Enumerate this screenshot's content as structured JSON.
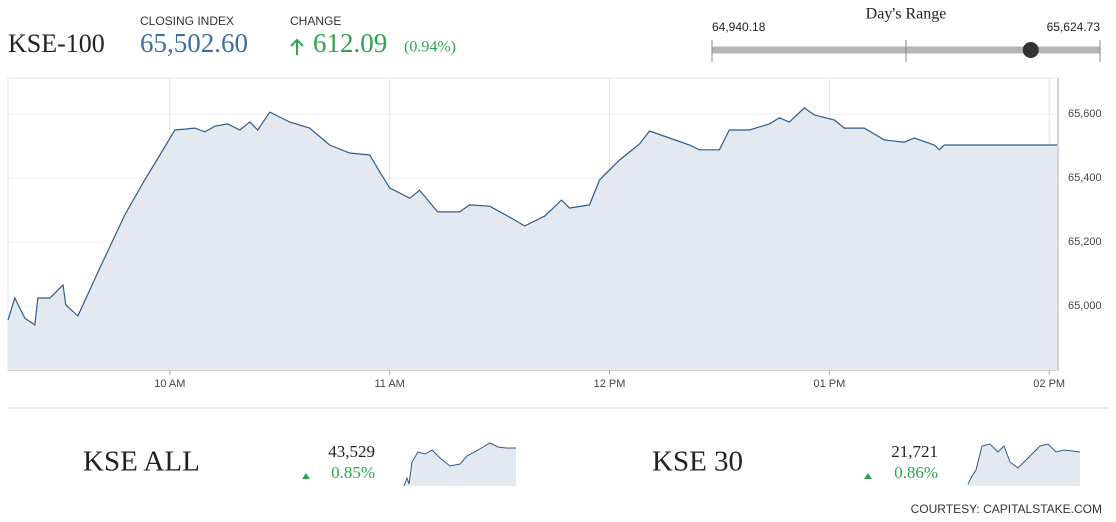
{
  "header": {
    "name": "KSE-100",
    "closing_label": "CLOSING INDEX",
    "closing": {
      "value": 65502.6,
      "label": "65,502.60"
    },
    "change_label": "CHANGE",
    "change": 612.09,
    "change_pct": {
      "value": 0.94,
      "label": "(0.94%)"
    }
  },
  "range": {
    "title": "Day's Range",
    "low": {
      "value": 64940.18,
      "label": "64,940.18"
    },
    "high": {
      "value": 65624.73,
      "label": "65,624.73"
    }
  },
  "chart_data": {
    "type": "line",
    "color": "#2f5d8c",
    "fill": "#e3e9f1",
    "grid": true,
    "x": [
      9.264,
      9.295,
      9.341,
      9.386,
      9.4,
      9.455,
      9.514,
      9.527,
      9.582,
      9.682,
      9.795,
      9.886,
      9.955,
      10.023,
      10.114,
      10.159,
      10.205,
      10.264,
      10.318,
      10.364,
      10.4,
      10.455,
      10.545,
      10.636,
      10.727,
      10.818,
      10.909,
      10.955,
      11.0,
      11.091,
      11.136,
      11.218,
      11.318,
      11.364,
      11.455,
      11.568,
      11.614,
      11.705,
      11.782,
      11.818,
      11.909,
      11.955,
      12.045,
      12.136,
      12.182,
      12.273,
      12.364,
      12.409,
      12.5,
      12.545,
      12.636,
      12.727,
      12.773,
      12.818,
      12.886,
      12.932,
      13.023,
      13.068,
      13.159,
      13.25,
      13.341,
      13.386,
      13.477,
      13.5,
      13.523,
      14.036
    ],
    "values": [
      64956,
      65025,
      64962,
      64941,
      65025,
      65025,
      65066,
      65003,
      64969,
      65119,
      65284,
      65394,
      65472,
      65550,
      65556,
      65544,
      65562,
      65569,
      65550,
      65575,
      65550,
      65606,
      65575,
      65556,
      65503,
      65478,
      65472,
      65419,
      65369,
      65337,
      65362,
      65294,
      65294,
      65316,
      65312,
      65269,
      65250,
      65281,
      65331,
      65306,
      65316,
      65394,
      65456,
      65506,
      65547,
      65525,
      65503,
      65488,
      65488,
      65550,
      65550,
      65569,
      65588,
      65575,
      65619,
      65597,
      65581,
      65556,
      65556,
      65519,
      65512,
      65525,
      65503,
      65488,
      65503,
      65503
    ],
    "xlim": [
      9.264,
      14.04
    ],
    "ylim": [
      64800,
      65700
    ],
    "xticks": [
      {
        "value": 10,
        "label": "10 AM"
      },
      {
        "value": 11,
        "label": "11 AM"
      },
      {
        "value": 12,
        "label": "12 PM"
      },
      {
        "value": 13,
        "label": "01 PM"
      },
      {
        "value": 14,
        "label": "02 PM"
      }
    ],
    "yticks": [
      {
        "value": 65000,
        "label": "65,000"
      },
      {
        "value": 65200,
        "label": "65,200"
      },
      {
        "value": 65400,
        "label": "65,400"
      },
      {
        "value": 65600,
        "label": "65,600"
      }
    ]
  },
  "indices": [
    {
      "name": "KSE ALL",
      "value": {
        "value": 43529,
        "label": "43,529"
      },
      "change": {
        "value": 0.85,
        "label": "0.85%"
      }
    },
    {
      "name": "KSE 30",
      "value": {
        "value": 21721,
        "label": "21,721"
      },
      "change": {
        "value": 0.86,
        "label": "0.86%"
      }
    }
  ],
  "footer": "COURTESY: CAPITALSTAKE.COM"
}
